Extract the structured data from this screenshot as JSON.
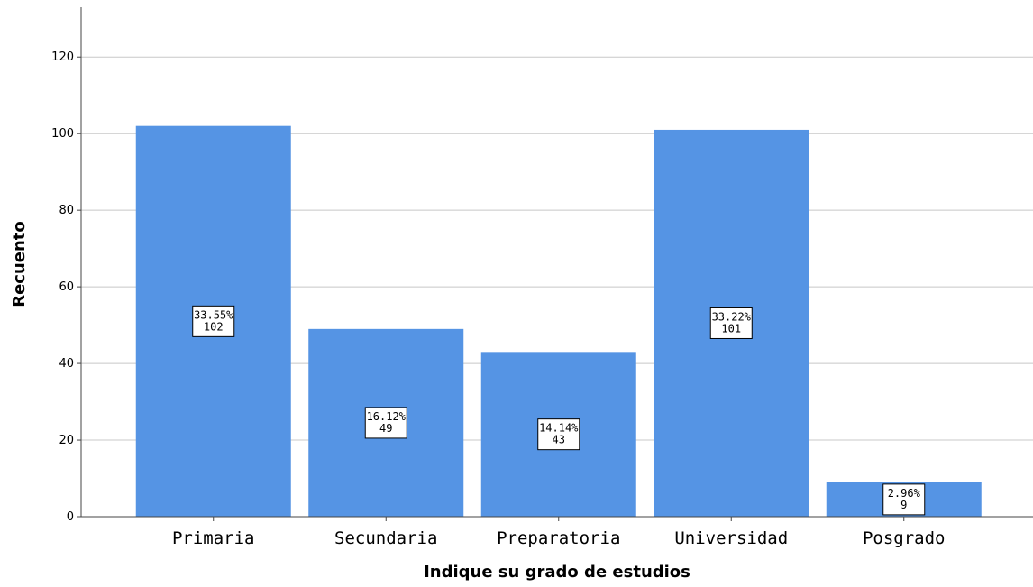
{
  "chart_data": {
    "type": "bar",
    "title": "",
    "xlabel": "Indique su grado de estudios",
    "ylabel": "Recuento",
    "categories": [
      "Primaria",
      "Secundaria",
      "Preparatoria",
      "Universidad",
      "Posgrado"
    ],
    "values": [
      102,
      49,
      43,
      101,
      9
    ],
    "percent_labels": [
      "33.55%",
      "16.12%",
      "14.14%",
      "33.22%",
      "2.96%"
    ],
    "count_labels": [
      "102",
      "49",
      "43",
      "101",
      "9"
    ],
    "ylim": [
      0,
      133
    ],
    "yticks": [
      0,
      20,
      40,
      60,
      80,
      100,
      120
    ],
    "grid": true,
    "bar_color": "#5594e4",
    "grid_color": "#c8c8c8"
  }
}
